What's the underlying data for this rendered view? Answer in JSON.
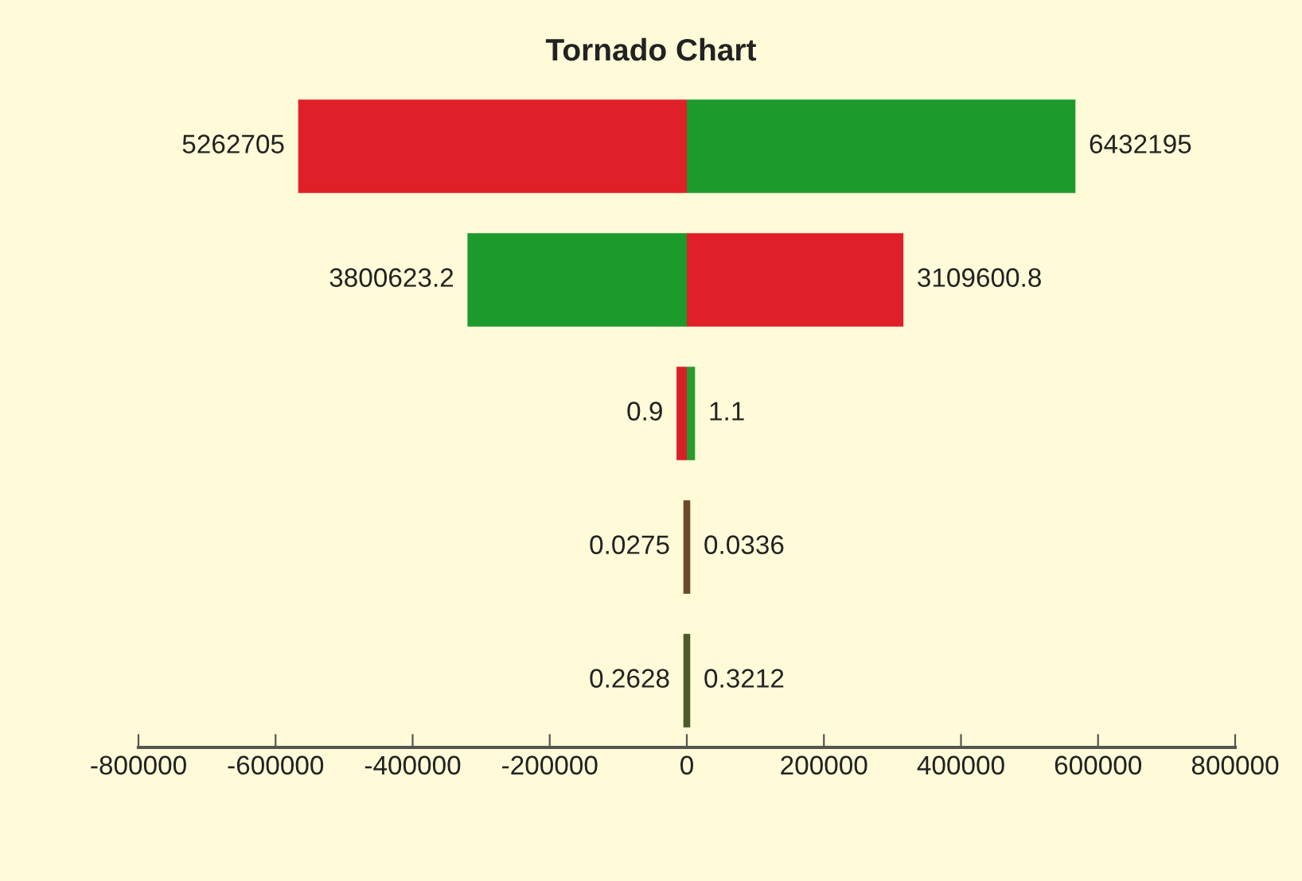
{
  "chart_data": {
    "type": "bar",
    "title": "Tornado Chart",
    "orientation": "horizontal",
    "stacked": true,
    "categories": [
      null,
      null,
      null,
      null,
      null
    ],
    "series": [
      {
        "colors": [
          "#e02028",
          "#1c9a2c",
          "#d8202a",
          "#6b4a2a",
          "#4d5a2a"
        ],
        "values": [
          -567000,
          -320000,
          -15000,
          -5000,
          -5000
        ]
      },
      {
        "colors": [
          "#1c9a2c",
          "#e02028",
          "#2a9a2c",
          "#6b4a2a",
          "#4d5a2a"
        ],
        "values": [
          567000,
          316000,
          12000,
          5000,
          5000
        ]
      }
    ],
    "annotations": [
      {
        "text": "5262705",
        "x": -567000
      },
      {
        "text": "6432195",
        "x": 567000
      },
      {
        "text": "3800623.2",
        "x": -320000
      },
      {
        "text": "3109600.8",
        "x": 316000
      },
      {
        "text": "0.9",
        "x": -15000
      },
      {
        "text": "1.1",
        "x": 12000
      },
      {
        "text": "0.0275",
        "x": -5000
      },
      {
        "text": "0.0336",
        "x": 5000
      },
      {
        "text": "0.2628",
        "x": -5000
      },
      {
        "text": "0.3212",
        "x": 5000
      }
    ],
    "xlim": [
      -800000,
      800000
    ],
    "xticks": [
      -800000,
      -600000,
      -400000,
      -200000,
      0,
      200000,
      400000,
      600000,
      800000
    ],
    "grid": false,
    "legend": false
  }
}
